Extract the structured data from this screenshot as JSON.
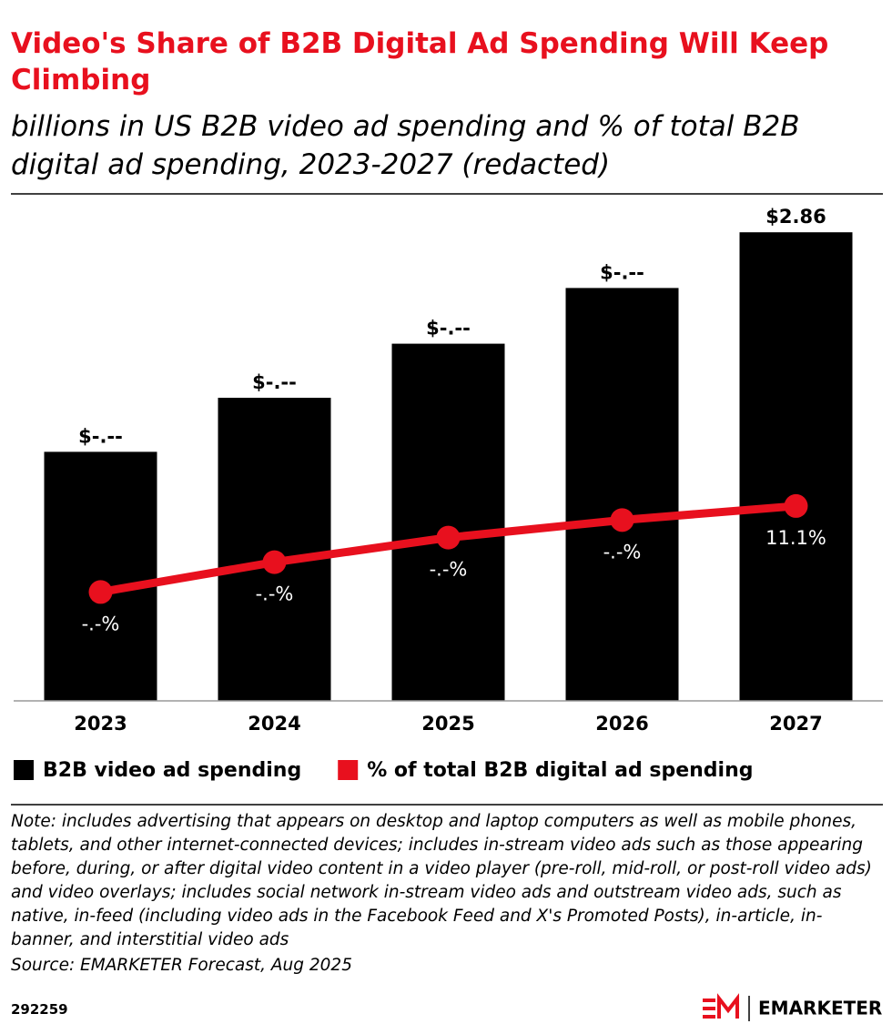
{
  "chart_data": {
    "type": "bar",
    "title": "Video's Share of B2B Digital Ad Spending Will Keep Climbing",
    "subtitle": "billions in US B2B video ad spending and % of total B2B digital ad spending, 2023-2027 (redacted)",
    "categories": [
      "2023",
      "2024",
      "2025",
      "2026",
      "2027"
    ],
    "series": [
      {
        "name": "B2B video ad spending",
        "type": "bar",
        "color": "#000000",
        "values": [
          1.52,
          1.85,
          2.18,
          2.52,
          2.86
        ],
        "value_labels": [
          "$-.--",
          "$-.--",
          "$-.--",
          "$-.--",
          "$2.86"
        ]
      },
      {
        "name": "% of total B2B digital ad spending",
        "type": "line",
        "axis": "y2",
        "color": "#e8101e",
        "values": [
          6.2,
          7.9,
          9.3,
          10.3,
          11.1
        ],
        "value_labels": [
          "-.-%",
          "-.-%",
          "-.-%",
          "-.-%",
          "11.1%"
        ]
      }
    ],
    "ylim": [
      0,
      3
    ],
    "y2lim": [
      0,
      28
    ],
    "note": "Note: includes advertising that appears on desktop and laptop computers as well as mobile phones, tablets, and other internet-connected devices; includes in-stream video ads such as those appearing before, during, or after digital video content in a video player (pre-roll, mid-roll, or post-roll video ads) and video overlays; includes social network in-stream video ads and outstream video ads, such as native, in-feed (including video ads in the Facebook Feed and X's Promoted Posts), in-article, in-banner, and interstitial video ads",
    "source": "Source: EMARKETER Forecast, Aug 2025",
    "chart_id": "292259",
    "brand": "EMARKETER"
  }
}
